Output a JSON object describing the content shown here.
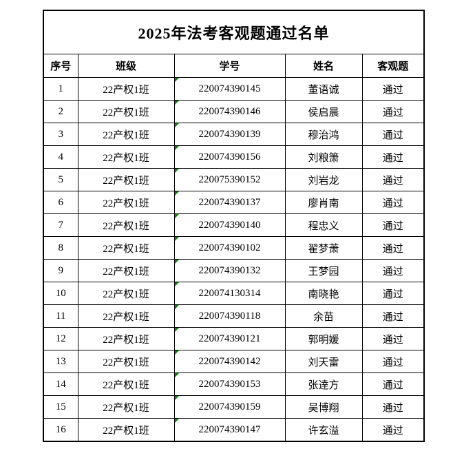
{
  "title": "2025年法考客观题通过名单",
  "columns": {
    "seq": "序号",
    "class": "班级",
    "student_id": "学号",
    "name": "姓名",
    "objective": "客观题"
  },
  "colors": {
    "indicator_green": "#108010",
    "border": "#000000",
    "background": "#ffffff",
    "text": "#000000"
  },
  "rows": [
    {
      "seq": "1",
      "class": "22产权1班",
      "student_id": "220074390145",
      "name": "董语诚",
      "result": "通过"
    },
    {
      "seq": "2",
      "class": "22产权1班",
      "student_id": "220074390146",
      "name": "侯启晨",
      "result": "通过"
    },
    {
      "seq": "3",
      "class": "22产权1班",
      "student_id": "220074390139",
      "name": "穆治鸿",
      "result": "通过"
    },
    {
      "seq": "4",
      "class": "22产权1班",
      "student_id": "220074390156",
      "name": "刘粮箫",
      "result": "通过"
    },
    {
      "seq": "5",
      "class": "22产权1班",
      "student_id": "220075390152",
      "name": "刘岩龙",
      "result": "通过"
    },
    {
      "seq": "6",
      "class": "22产权1班",
      "student_id": "220074390137",
      "name": "廖肖南",
      "result": "通过"
    },
    {
      "seq": "7",
      "class": "22产权1班",
      "student_id": "220074390140",
      "name": "程忠义",
      "result": "通过"
    },
    {
      "seq": "8",
      "class": "22产权1班",
      "student_id": "220074390102",
      "name": "翟梦萧",
      "result": "通过"
    },
    {
      "seq": "9",
      "class": "22产权1班",
      "student_id": "220074390132",
      "name": "王梦园",
      "result": "通过"
    },
    {
      "seq": "10",
      "class": "22产权1班",
      "student_id": "220074130314",
      "name": "南晓艳",
      "result": "通过"
    },
    {
      "seq": "11",
      "class": "22产权1班",
      "student_id": "220074390118",
      "name": "余苗",
      "result": "通过"
    },
    {
      "seq": "12",
      "class": "22产权1班",
      "student_id": "220074390121",
      "name": "郭明媛",
      "result": "通过"
    },
    {
      "seq": "13",
      "class": "22产权1班",
      "student_id": "220074390142",
      "name": "刘天雷",
      "result": "通过"
    },
    {
      "seq": "14",
      "class": "22产权1班",
      "student_id": "220074390153",
      "name": "张逹方",
      "result": "通过"
    },
    {
      "seq": "15",
      "class": "22产权1班",
      "student_id": "220074390159",
      "name": "吴博翔",
      "result": "通过"
    },
    {
      "seq": "16",
      "class": "22产权1班",
      "student_id": "220074390147",
      "name": "许玄溢",
      "result": "通过"
    }
  ]
}
